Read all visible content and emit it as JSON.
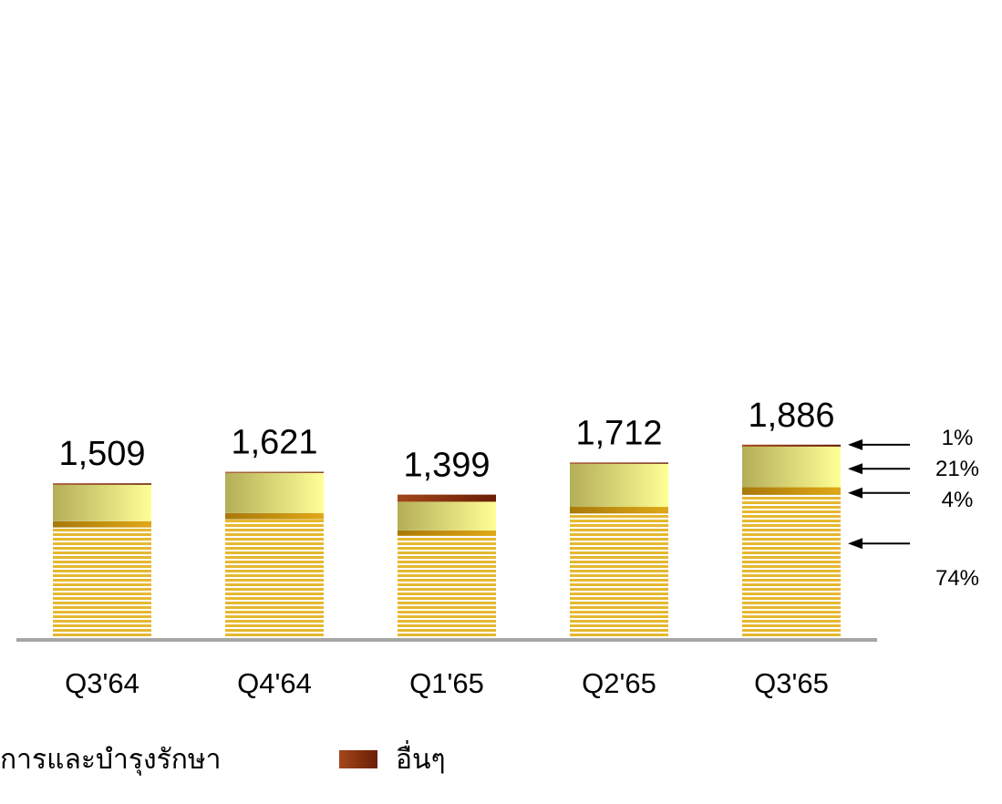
{
  "chart_data": {
    "type": "bar",
    "stacked": true,
    "categories": [
      "Q3'64",
      "Q4'64",
      "Q1'65",
      "Q2'65",
      "Q3'65"
    ],
    "totals": [
      1509,
      1621,
      1399,
      1712,
      1886
    ],
    "total_labels": [
      "1,509",
      "1,621",
      "1,399",
      "1,712",
      "1,886"
    ],
    "series": [
      {
        "values": [
          1080,
          1160,
          1000,
          1215,
          1396
        ],
        "color": "#e6b830",
        "pattern": "horizontal-stripes"
      },
      {
        "values": [
          60,
          60,
          50,
          65,
          75
        ],
        "color": "#c8960a"
      },
      {
        "values": [
          355,
          390,
          280,
          420,
          396
        ],
        "color": "#f2ef9a",
        "gradient": [
          "#b4ae58",
          "#ffff96"
        ]
      },
      {
        "values": [
          14,
          11,
          69,
          12,
          19
        ],
        "color": "#8a2e0a",
        "gradient": [
          "#a3471a",
          "#6a1e05"
        ]
      }
    ],
    "share_annotations": [
      {
        "label": "1%",
        "series_index": 3
      },
      {
        "label": "21%",
        "series_index": 2
      },
      {
        "label": "4%",
        "series_index": 1
      },
      {
        "label": "74%",
        "series_index": 0
      }
    ],
    "ylim": [
      0,
      2000
    ],
    "grid": false
  },
  "legend": {
    "partial_label": "การและบำรุงรักษา",
    "other_label": "อื่นๆ"
  }
}
